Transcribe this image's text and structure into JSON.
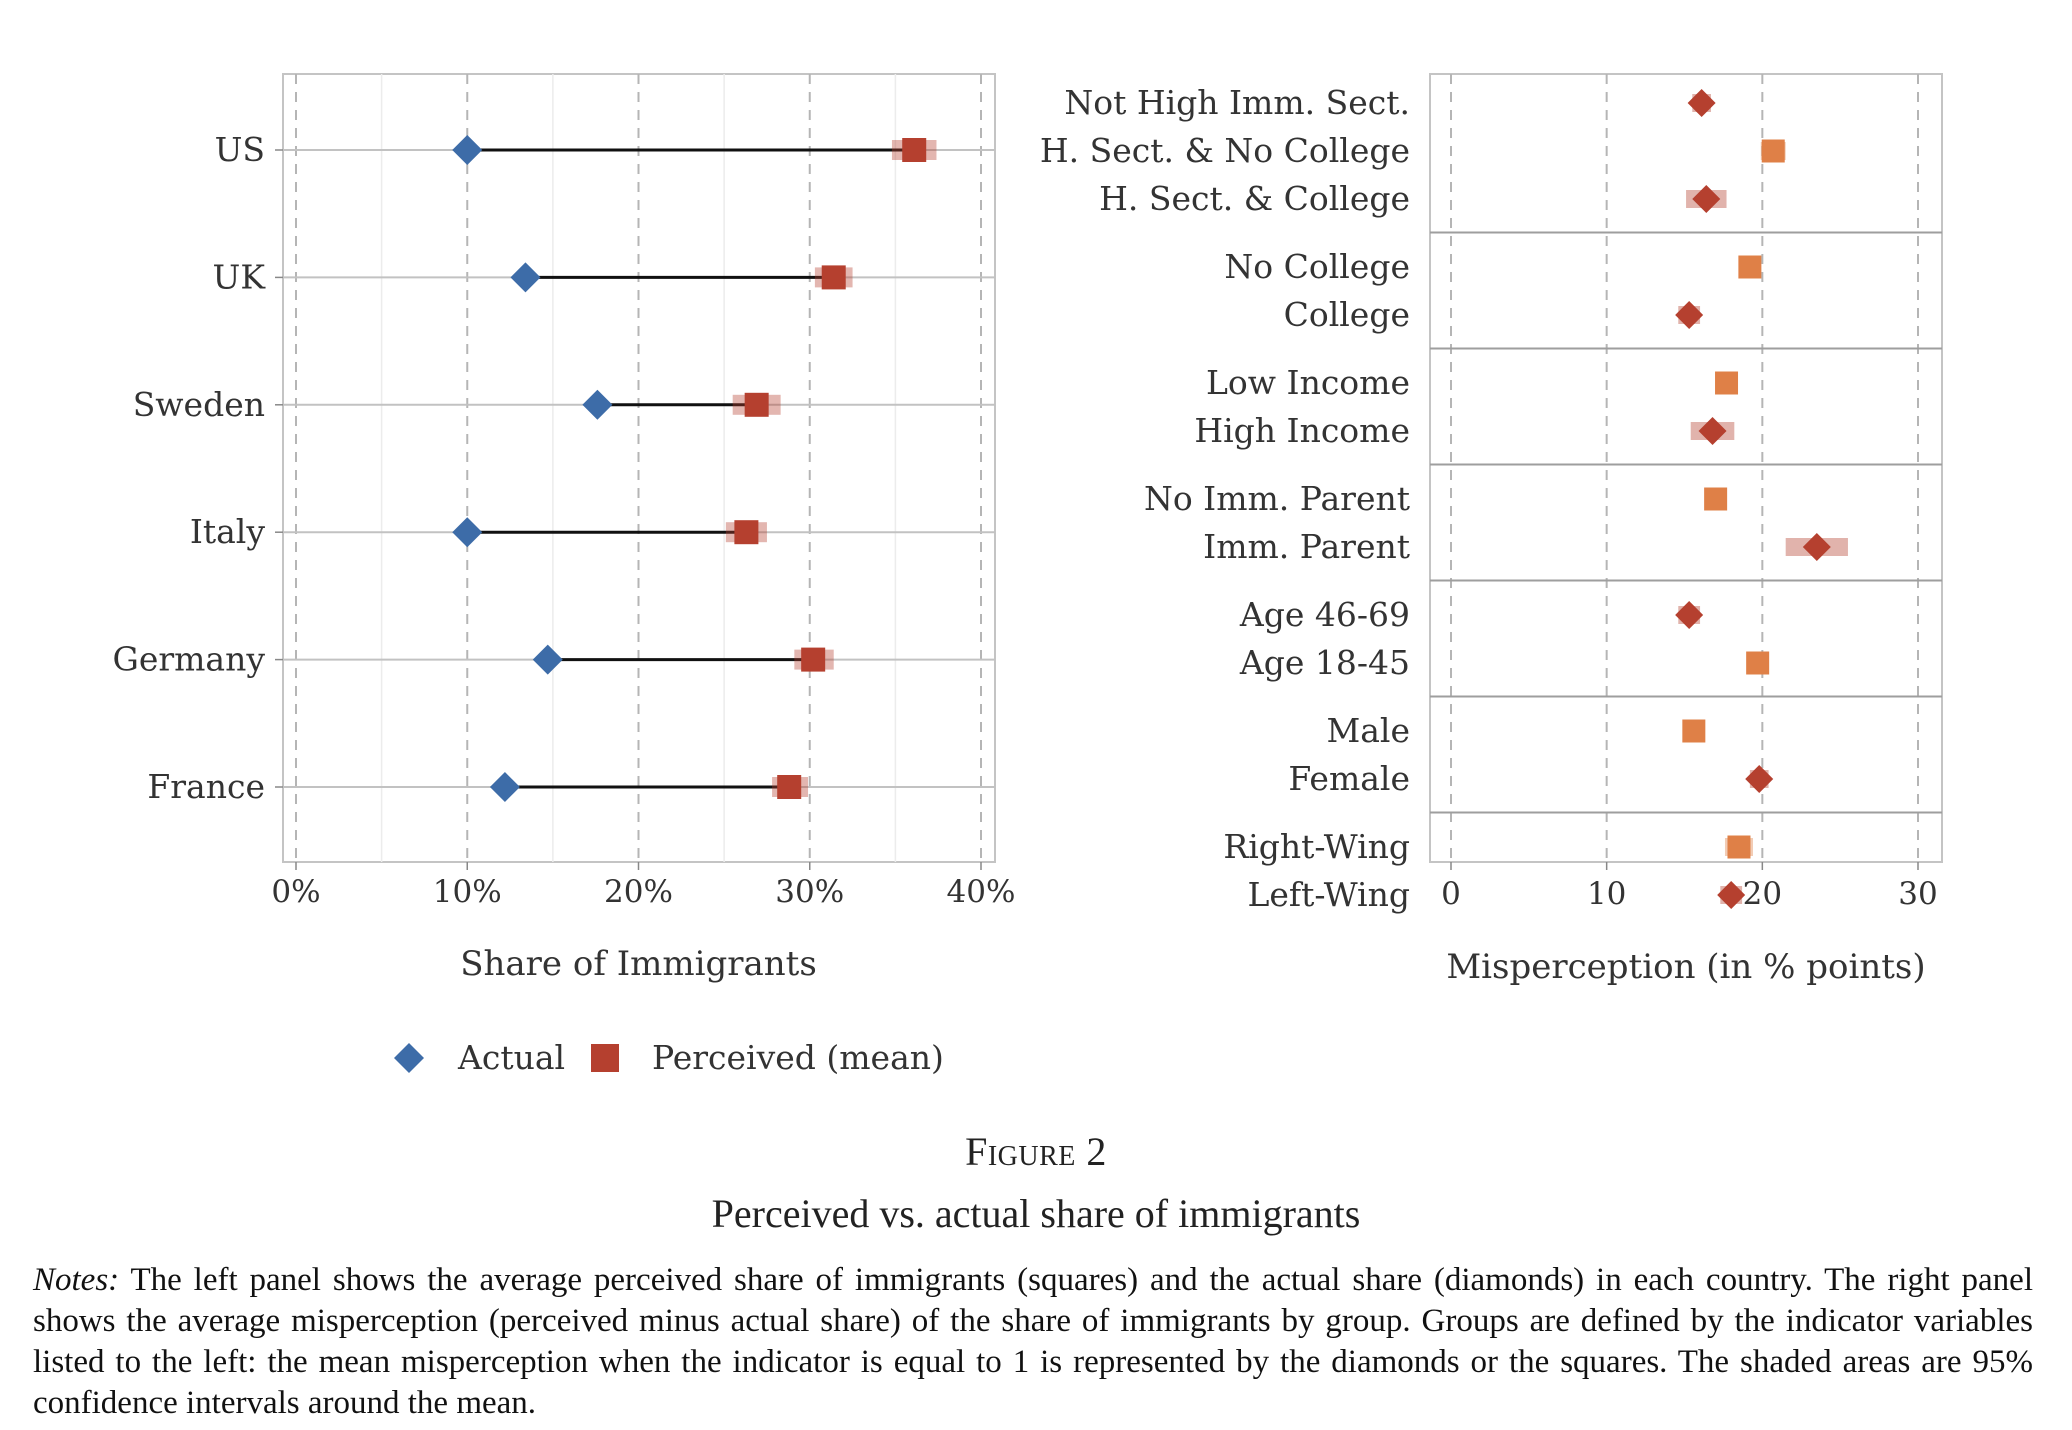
{
  "figure_label": "Figure 2",
  "figure_title": "Perceived vs. actual share of immigrants",
  "notes_label": "Notes:",
  "notes_text": " The left panel shows the average perceived share of immigrants (squares) and the actual share (diamonds) in each country. The right panel shows the average misperception (perceived minus actual share) of the share of immigrants by group. Groups are defined by the indicator variables listed to the left: the mean misperception when the indicator is equal to 1 is represented by the diamonds or the squares. The shaded areas are 95% confidence intervals around the mean.",
  "colors": {
    "actual": "#3d6ca8",
    "perceived": "#b5402f",
    "group_orange": "#df8047",
    "group_red": "#b5402f",
    "grid": "#b0b0b0"
  },
  "chart_data": [
    {
      "type": "scatter",
      "panel": "left",
      "xlabel": "Share of Immigrants",
      "ylabel": "",
      "xlim": [
        0,
        40
      ],
      "x_ticks": [
        "0%",
        "10%",
        "20%",
        "30%",
        "40%"
      ],
      "grid": true,
      "legend_position": "bottom",
      "categories": [
        "US",
        "UK",
        "Sweden",
        "Italy",
        "Germany",
        "France"
      ],
      "series": [
        {
          "name": "Actual",
          "marker": "diamond",
          "values": [
            10.0,
            13.4,
            17.6,
            10.0,
            14.7,
            12.2
          ]
        },
        {
          "name": "Perceived (mean)",
          "marker": "square",
          "values": [
            36.1,
            31.4,
            26.9,
            26.3,
            30.2,
            28.8
          ],
          "ci": [
            [
              34.8,
              37.4
            ],
            [
              30.3,
              32.5
            ],
            [
              25.5,
              28.3
            ],
            [
              25.1,
              27.5
            ],
            [
              29.1,
              31.4
            ],
            [
              27.8,
              29.9
            ]
          ]
        }
      ]
    },
    {
      "type": "scatter",
      "panel": "right",
      "xlabel": "Misperception (in % points)",
      "ylabel": "",
      "xlim": [
        -1.5,
        31.5
      ],
      "x_ticks": [
        "0",
        "10",
        "20",
        "30"
      ],
      "grid": true,
      "groups": [
        {
          "items": [
            {
              "label": "Not High Imm. Sect.",
              "value": 16.1,
              "ci": [
                15.5,
                16.7
              ],
              "marker": "diamond"
            },
            {
              "label": "H. Sect. & No College",
              "value": 20.7,
              "ci": [
                19.9,
                21.5
              ],
              "marker": "square"
            },
            {
              "label": "H. Sect. & College",
              "value": 16.4,
              "ci": [
                15.1,
                17.7
              ],
              "marker": "diamond"
            }
          ]
        },
        {
          "items": [
            {
              "label": "No College",
              "value": 19.2,
              "ci": [
                18.7,
                19.7
              ],
              "marker": "square"
            },
            {
              "label": "College",
              "value": 15.3,
              "ci": [
                14.6,
                16.0
              ],
              "marker": "diamond"
            }
          ]
        },
        {
          "items": [
            {
              "label": "Low Income",
              "value": 17.7,
              "ci": [
                17.1,
                18.3
              ],
              "marker": "square"
            },
            {
              "label": "High Income",
              "value": 16.8,
              "ci": [
                15.4,
                18.2
              ],
              "marker": "diamond"
            }
          ]
        },
        {
          "items": [
            {
              "label": "No Imm. Parent",
              "value": 17.0,
              "ci": [
                16.5,
                17.5
              ],
              "marker": "square"
            },
            {
              "label": "Imm. Parent",
              "value": 23.5,
              "ci": [
                21.5,
                25.5
              ],
              "marker": "diamond"
            }
          ]
        },
        {
          "items": [
            {
              "label": "Age 46-69",
              "value": 15.3,
              "ci": [
                14.6,
                16.0
              ],
              "marker": "diamond"
            },
            {
              "label": "Age 18-45",
              "value": 19.7,
              "ci": [
                19.1,
                20.3
              ],
              "marker": "square"
            }
          ]
        },
        {
          "items": [
            {
              "label": "Male",
              "value": 15.6,
              "ci": [
                14.9,
                16.3
              ],
              "marker": "square"
            },
            {
              "label": "Female",
              "value": 19.8,
              "ci": [
                19.2,
                20.4
              ],
              "marker": "diamond"
            }
          ]
        },
        {
          "items": [
            {
              "label": "Right-Wing",
              "value": 18.5,
              "ci": [
                17.6,
                19.4
              ],
              "marker": "square"
            },
            {
              "label": "Left-Wing",
              "value": 18.0,
              "ci": [
                17.3,
                18.7
              ],
              "marker": "diamond"
            }
          ]
        }
      ]
    }
  ]
}
